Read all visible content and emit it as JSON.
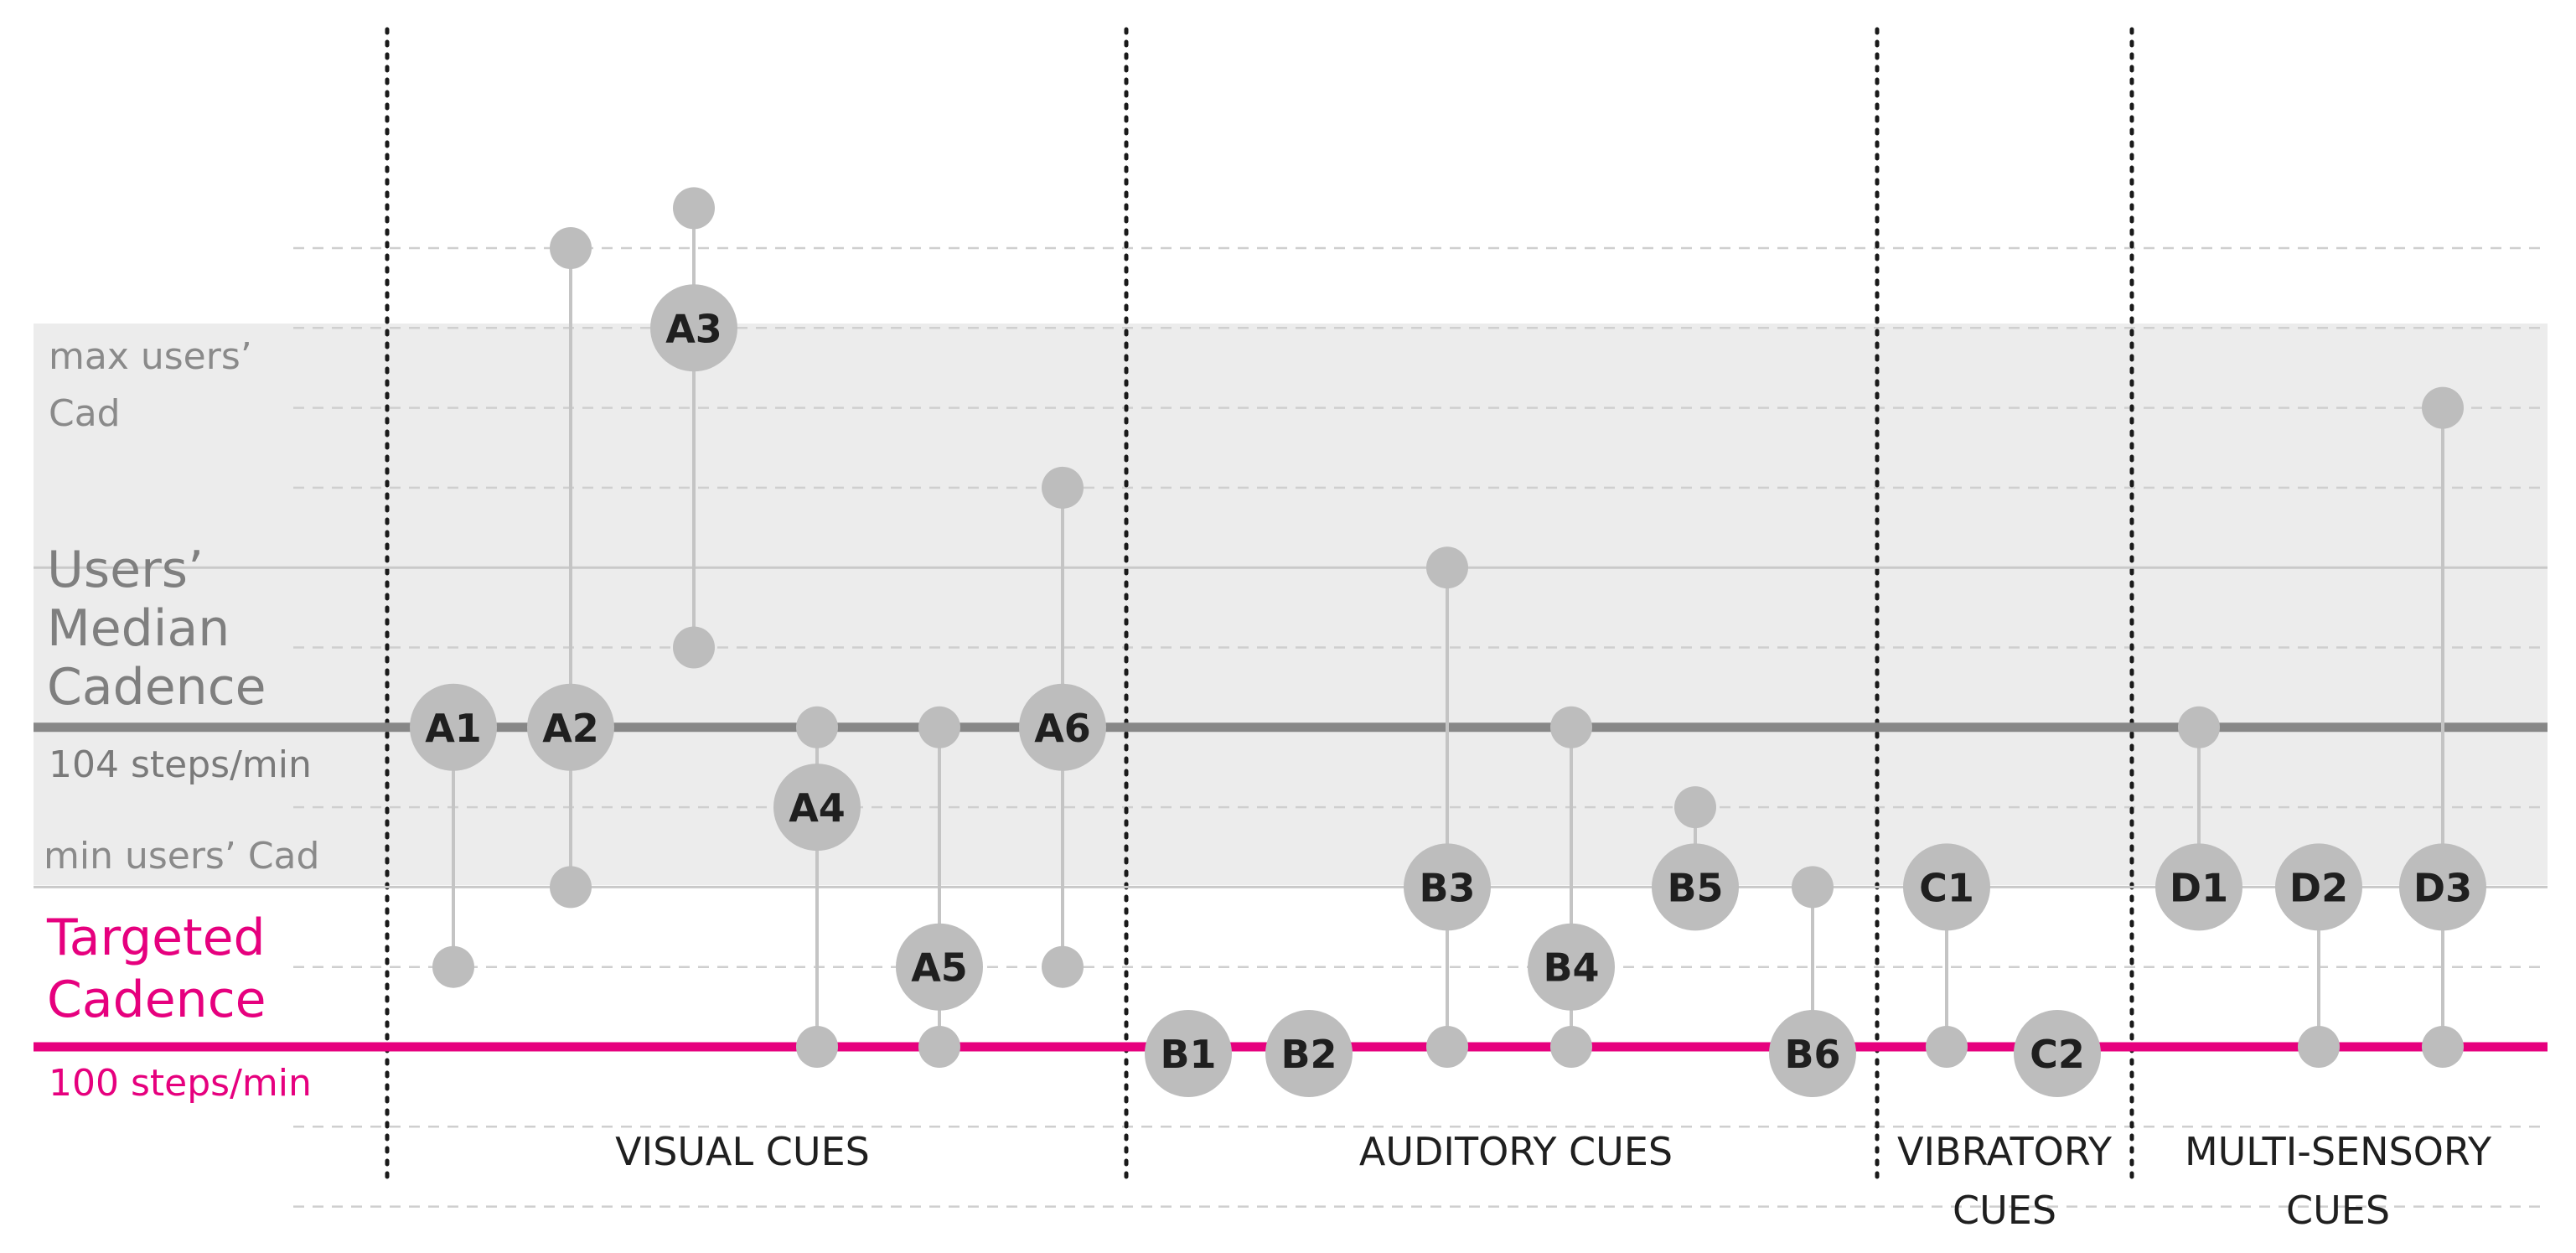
{
  "chart_data": {
    "type": "range-dot",
    "title": "",
    "y_unit": "steps/min",
    "ylim": [
      97,
      111
    ],
    "grid_values": [
      98,
      99,
      100,
      101,
      102,
      103,
      104,
      105,
      106,
      107,
      108,
      109,
      110
    ],
    "median_label": "Users’ Median Cadence",
    "median_value_label": "104 steps/min",
    "median_value": 104,
    "targeted_label": "Targeted Cadence",
    "targeted_value_label": "100 steps/min",
    "targeted_value": 100,
    "max_label": "max users’ Cad",
    "max_value": 106,
    "min_label": "min users’ Cad",
    "min_value": 102,
    "colors": {
      "band": "#ececec",
      "median_line": "#878787",
      "target_line": "#e6007e",
      "dot": "#bdbdbd",
      "connector": "#c4c4c4",
      "grid": "#cfcfcf",
      "label_gray": "#8a8a8a",
      "label_magenta": "#e6007e"
    },
    "categories": [
      {
        "name": "VISUAL CUES",
        "lines": [
          "VISUAL CUES"
        ]
      },
      {
        "name": "AUDITORY CUES",
        "lines": [
          "AUDITORY CUES"
        ]
      },
      {
        "name": "VIBRATORY CUES",
        "lines": [
          "VIBRATORY",
          "CUES"
        ]
      },
      {
        "name": "MULTI-SENSORY CUES",
        "lines": [
          "MULTI-SENSORY",
          "CUES"
        ]
      }
    ],
    "studies": [
      {
        "id": "A1",
        "category": "VISUAL CUES",
        "label_value": 104,
        "min": 101,
        "max": 104
      },
      {
        "id": "A2",
        "category": "VISUAL CUES",
        "label_value": 104,
        "min": 102,
        "max": 110
      },
      {
        "id": "A3",
        "category": "VISUAL CUES",
        "label_value": 109,
        "min": 105,
        "max": 110.5
      },
      {
        "id": "A4",
        "category": "VISUAL CUES",
        "label_value": 103,
        "min": 100,
        "max": 104
      },
      {
        "id": "A5",
        "category": "VISUAL CUES",
        "label_value": 101,
        "min": 100,
        "max": 104
      },
      {
        "id": "A6",
        "category": "VISUAL CUES",
        "label_value": 104,
        "min": 101,
        "max": 107
      },
      {
        "id": "B1",
        "category": "AUDITORY CUES",
        "label_value": 100,
        "min": 100,
        "max": 100
      },
      {
        "id": "B2",
        "category": "AUDITORY CUES",
        "label_value": 100,
        "min": 100,
        "max": 100
      },
      {
        "id": "B3",
        "category": "AUDITORY CUES",
        "label_value": 102,
        "min": 100,
        "max": 106
      },
      {
        "id": "B4",
        "category": "AUDITORY CUES",
        "label_value": 101,
        "min": 100,
        "max": 104
      },
      {
        "id": "B5",
        "category": "AUDITORY CUES",
        "label_value": 102,
        "min": 102,
        "max": 103
      },
      {
        "id": "B6",
        "category": "AUDITORY CUES",
        "label_value": 100,
        "min": 100,
        "max": 102
      },
      {
        "id": "C1",
        "category": "VIBRATORY CUES",
        "label_value": 102,
        "min": 100,
        "max": 102
      },
      {
        "id": "C2",
        "category": "VIBRATORY CUES",
        "label_value": 100,
        "min": 100,
        "max": 100
      },
      {
        "id": "D1",
        "category": "MULTI-SENSORY CUES",
        "label_value": 102,
        "min": 102,
        "max": 104
      },
      {
        "id": "D2",
        "category": "MULTI-SENSORY CUES",
        "label_value": 102,
        "min": 100,
        "max": 102
      },
      {
        "id": "D3",
        "category": "MULTI-SENSORY CUES",
        "label_value": 102,
        "min": 100,
        "max": 108
      }
    ]
  }
}
